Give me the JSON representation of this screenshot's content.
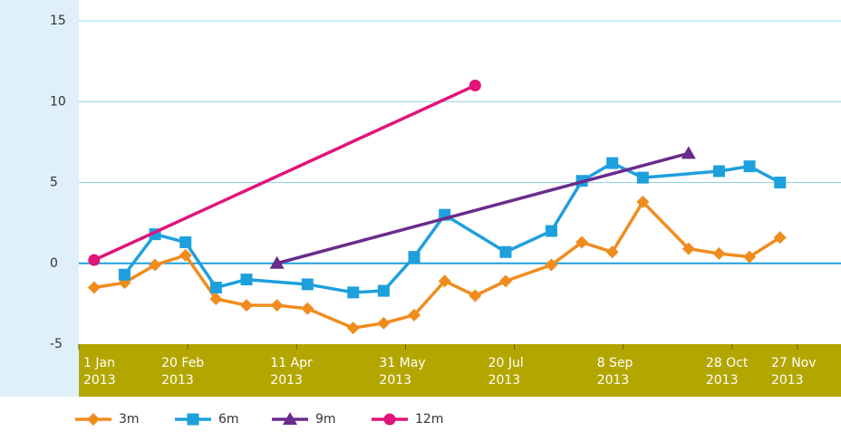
{
  "chart_data": {
    "type": "line",
    "xlim": [
      "2013-01-01",
      "2013-12-17"
    ],
    "xticks": [
      {
        "value": "2013-01-01",
        "label": "1 Jan 2013"
      },
      {
        "value": "2013-02-20",
        "label": "20 Feb 2013"
      },
      {
        "value": "2013-04-11",
        "label": "11 Apr 2013"
      },
      {
        "value": "2013-05-31",
        "label": "31 May 2013"
      },
      {
        "value": "2013-07-20",
        "label": "20 Jul 2013"
      },
      {
        "value": "2013-09-08",
        "label": "8 Sep 2013"
      },
      {
        "value": "2013-10-28",
        "label": "28 Oct 2013"
      },
      {
        "value": "2013-11-27",
        "label": "27 Nov 2013"
      }
    ],
    "ylim": [
      -5,
      15
    ],
    "yticks": [
      -5,
      0,
      5,
      10,
      15
    ],
    "grid": true,
    "legend": "bottom",
    "series": [
      {
        "name": "3m",
        "color": "#f08c1e",
        "marker": "diamond",
        "x": [
          "2013-01-08",
          "2013-01-22",
          "2013-02-05",
          "2013-02-19",
          "2013-03-05",
          "2013-03-19",
          "2013-04-02",
          "2013-04-16",
          "2013-05-07",
          "2013-05-21",
          "2013-06-04",
          "2013-06-18",
          "2013-07-02",
          "2013-07-16",
          "2013-08-06",
          "2013-08-20",
          "2013-09-03",
          "2013-09-17",
          "2013-10-08",
          "2013-10-22",
          "2013-11-05",
          "2013-11-19"
        ],
        "values": [
          -1.5,
          -1.2,
          -0.1,
          0.5,
          -2.2,
          -2.6,
          -2.6,
          -2.8,
          -4.0,
          -3.7,
          -3.2,
          -1.1,
          -2.0,
          -1.1,
          -0.1,
          1.3,
          0.7,
          3.8,
          0.9,
          0.6,
          0.4,
          1.6
        ]
      },
      {
        "name": "6m",
        "color": "#1ea0dc",
        "marker": "square",
        "x": [
          "2013-01-22",
          "2013-02-05",
          "2013-02-19",
          "2013-03-05",
          "2013-03-19",
          "2013-04-16",
          "2013-05-07",
          "2013-05-21",
          "2013-06-04",
          "2013-06-18",
          "2013-07-16",
          "2013-08-06",
          "2013-08-20",
          "2013-09-03",
          "2013-09-17",
          "2013-10-22",
          "2013-11-05",
          "2013-11-19"
        ],
        "values": [
          -0.7,
          1.8,
          1.3,
          -1.5,
          -1.0,
          -1.3,
          -1.8,
          -1.7,
          0.4,
          3.0,
          0.7,
          2.0,
          5.1,
          6.2,
          5.3,
          5.7,
          6.0,
          5.0
        ]
      },
      {
        "name": "9m",
        "color": "#6a2c8c",
        "marker": "triangle",
        "x": [
          "2013-04-02",
          "2013-10-08"
        ],
        "values": [
          0.0,
          6.8
        ]
      },
      {
        "name": "12m",
        "color": "#e0147a",
        "marker": "circle",
        "x": [
          "2013-01-08",
          "2013-07-02"
        ],
        "values": [
          0.2,
          11.0
        ]
      }
    ]
  }
}
